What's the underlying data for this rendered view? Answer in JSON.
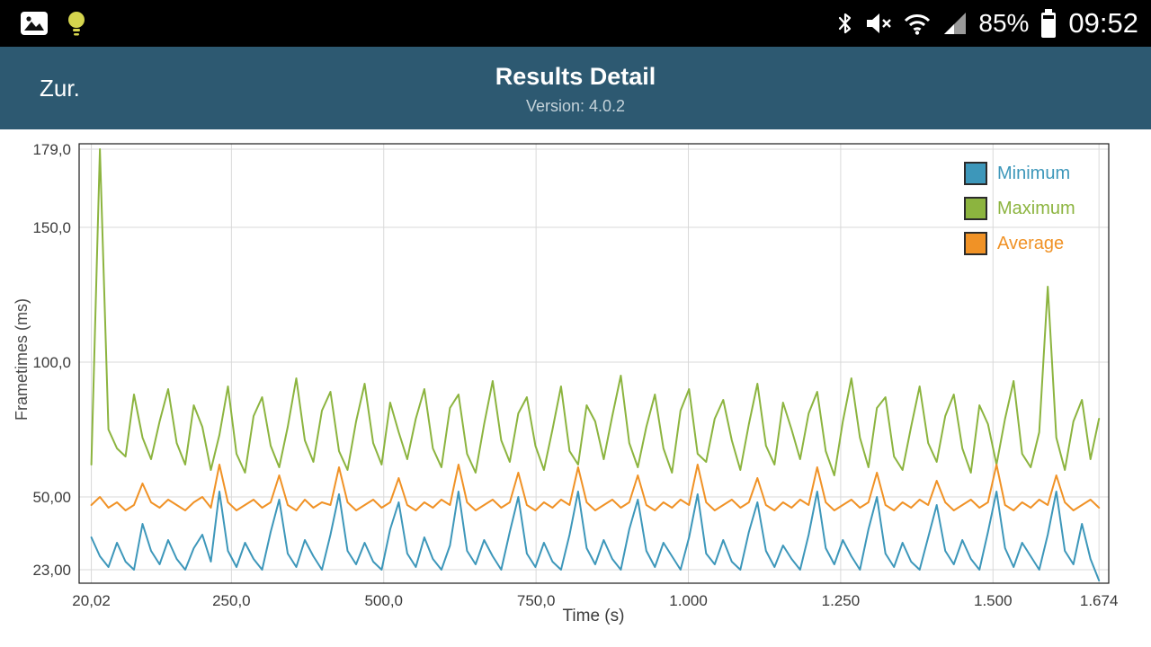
{
  "status_bar": {
    "battery_percent": "85%",
    "time": "09:52",
    "left_icons": [
      "gallery-icon",
      "flashlight-icon"
    ],
    "right_icons": [
      "bluetooth-icon",
      "vibrate-mute-icon",
      "wifi-icon",
      "cell-signal-icon",
      "battery-icon"
    ]
  },
  "header": {
    "back_label": "Zur.",
    "title": "Results Detail",
    "subtitle": "Version: 4.0.2"
  },
  "colors": {
    "statusbar_bg": "#000000",
    "header_bg": "#2d5971",
    "grid": "#d9d9d9",
    "axis_text": "#3b3b3b",
    "flashlight_yellow": "#d5d54e",
    "minimum": "#3d97ba",
    "maximum": "#8cb43f",
    "average": "#f09226"
  },
  "chart_data": {
    "type": "line",
    "title": "",
    "xlabel": "Time (s)",
    "ylabel": "Frametimes (ms)",
    "grid": true,
    "legend_position": "top-right",
    "x_domain": [
      0,
      1690
    ],
    "y_domain": [
      18,
      181
    ],
    "x_ticks": [
      {
        "value": 20.02,
        "label": "20,02"
      },
      {
        "value": 250,
        "label": "250,0"
      },
      {
        "value": 500,
        "label": "500,0"
      },
      {
        "value": 750,
        "label": "750,0"
      },
      {
        "value": 1000,
        "label": "1.000"
      },
      {
        "value": 1250,
        "label": "1.250"
      },
      {
        "value": 1500,
        "label": "1.500"
      },
      {
        "value": 1674,
        "label": "1.674"
      }
    ],
    "y_ticks": [
      {
        "value": 179,
        "label": "179,0"
      },
      {
        "value": 150,
        "label": "150,0"
      },
      {
        "value": 100,
        "label": "100,0"
      },
      {
        "value": 50,
        "label": "50,00"
      },
      {
        "value": 23,
        "label": "23,00"
      }
    ],
    "x": {
      "start": 20.02,
      "end": 1674,
      "points": 119
    },
    "series": [
      {
        "name": "Minimum",
        "color": "#3d97ba",
        "values": [
          35,
          28,
          24,
          33,
          26,
          23,
          40,
          30,
          25,
          34,
          27,
          23,
          31,
          36,
          26,
          52,
          30,
          24,
          33,
          27,
          23,
          37,
          49,
          29,
          24,
          34,
          28,
          23,
          36,
          51,
          30,
          25,
          33,
          26,
          23,
          38,
          48,
          29,
          24,
          35,
          27,
          23,
          32,
          52,
          30,
          25,
          34,
          28,
          23,
          37,
          50,
          29,
          24,
          33,
          26,
          23,
          36,
          52,
          31,
          25,
          34,
          27,
          23,
          38,
          49,
          30,
          24,
          33,
          28,
          23,
          35,
          51,
          29,
          25,
          34,
          26,
          23,
          37,
          48,
          30,
          24,
          32,
          27,
          23,
          36,
          52,
          31,
          25,
          34,
          28,
          23,
          38,
          50,
          29,
          24,
          33,
          26,
          23,
          35,
          47,
          30,
          25,
          34,
          27,
          23,
          37,
          52,
          31,
          24,
          33,
          28,
          23,
          36,
          52,
          30,
          25,
          40,
          27,
          19
        ]
      },
      {
        "name": "Maximum",
        "color": "#8cb43f",
        "values": [
          62,
          179,
          75,
          68,
          65,
          88,
          72,
          64,
          78,
          90,
          70,
          62,
          84,
          76,
          60,
          73,
          91,
          66,
          59,
          80,
          87,
          69,
          61,
          76,
          94,
          71,
          63,
          82,
          89,
          67,
          60,
          78,
          92,
          70,
          62,
          85,
          74,
          64,
          79,
          90,
          68,
          61,
          83,
          88,
          66,
          59,
          77,
          93,
          71,
          63,
          81,
          87,
          69,
          60,
          75,
          91,
          67,
          62,
          84,
          78,
          64,
          80,
          95,
          70,
          61,
          76,
          88,
          68,
          59,
          82,
          90,
          66,
          63,
          79,
          86,
          71,
          60,
          77,
          92,
          69,
          62,
          85,
          75,
          64,
          81,
          89,
          67,
          58,
          78,
          94,
          72,
          61,
          83,
          87,
          65,
          60,
          76,
          91,
          70,
          63,
          80,
          88,
          68,
          59,
          84,
          77,
          62,
          79,
          93,
          66,
          61,
          74,
          128,
          72,
          60,
          78,
          86,
          64,
          79
        ]
      },
      {
        "name": "Average",
        "color": "#f09226",
        "values": [
          47,
          50,
          46,
          48,
          45,
          47,
          55,
          48,
          46,
          49,
          47,
          45,
          48,
          50,
          46,
          62,
          48,
          45,
          47,
          49,
          46,
          48,
          58,
          47,
          45,
          49,
          46,
          48,
          47,
          61,
          48,
          45,
          47,
          49,
          46,
          48,
          57,
          47,
          45,
          48,
          46,
          49,
          47,
          62,
          48,
          45,
          47,
          49,
          46,
          48,
          59,
          47,
          45,
          48,
          46,
          49,
          47,
          61,
          48,
          45,
          47,
          49,
          46,
          48,
          58,
          47,
          45,
          48,
          46,
          49,
          47,
          62,
          48,
          45,
          47,
          49,
          46,
          48,
          57,
          47,
          45,
          48,
          46,
          49,
          47,
          61,
          48,
          45,
          47,
          49,
          46,
          48,
          59,
          47,
          45,
          48,
          46,
          49,
          47,
          56,
          48,
          45,
          47,
          49,
          46,
          48,
          62,
          47,
          45,
          48,
          46,
          49,
          47,
          58,
          48,
          45,
          47,
          49,
          46
        ]
      }
    ]
  }
}
